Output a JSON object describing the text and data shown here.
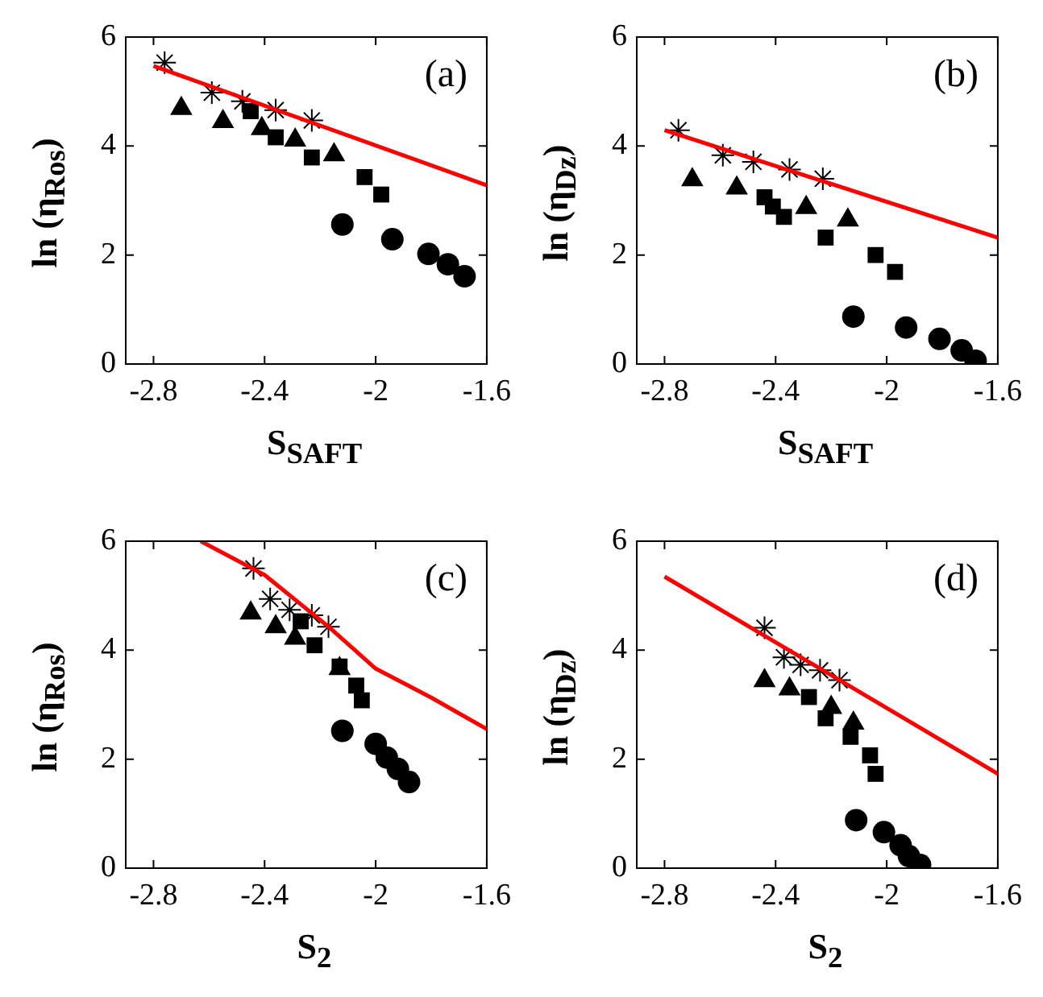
{
  "chart_data": [
    {
      "type": "scatter",
      "xlabel": "S$_{SAFT}$",
      "ylabel": "ln (η$_{Ros}$)",
      "annotations": [
        "(a)"
      ],
      "xlim": [
        -2.9,
        -1.6
      ],
      "xticks": [
        -2.8,
        -2.4,
        -2.0,
        -1.6
      ],
      "ylim": [
        0,
        6
      ],
      "yticks": [
        0,
        2,
        4,
        6
      ],
      "grid": false,
      "legend": false,
      "series": [
        {
          "type": "line",
          "marker": "none",
          "color": "#ff0000",
          "x": [
            -2.8,
            -1.6
          ],
          "values": [
            5.47,
            3.28
          ]
        },
        {
          "marker": "cross",
          "color": "#000000",
          "x": [
            -2.76,
            -2.59,
            -2.48,
            -2.36,
            -2.23
          ],
          "values": [
            5.53,
            4.98,
            4.82,
            4.66,
            4.47
          ]
        },
        {
          "marker": "triangle",
          "color": "#000000",
          "x": [
            -2.7,
            -2.55,
            -2.41,
            -2.29,
            -2.15
          ],
          "values": [
            4.69,
            4.45,
            4.32,
            4.11,
            3.84
          ]
        },
        {
          "marker": "square",
          "color": "#000000",
          "x": [
            -2.45,
            -2.36,
            -2.23,
            -2.04,
            -1.98
          ],
          "values": [
            4.64,
            4.16,
            3.79,
            3.43,
            3.11
          ]
        },
        {
          "marker": "circle",
          "color": "#000000",
          "x": [
            -2.12,
            -1.94,
            -1.81,
            -1.74,
            -1.68
          ],
          "values": [
            2.56,
            2.29,
            2.02,
            1.83,
            1.61
          ]
        }
      ]
    },
    {
      "type": "scatter",
      "xlabel": "S$_{SAFT}$",
      "ylabel": "ln (η$_{Dz}$)",
      "annotations": [
        "(b)"
      ],
      "xlim": [
        -2.9,
        -1.6
      ],
      "xticks": [
        -2.8,
        -2.4,
        -2.0,
        -1.6
      ],
      "ylim": [
        0,
        6
      ],
      "yticks": [
        0,
        2,
        4,
        6
      ],
      "grid": false,
      "legend": false,
      "series": [
        {
          "type": "line",
          "marker": "none",
          "color": "#ff0000",
          "x": [
            -2.8,
            -1.6
          ],
          "values": [
            4.29,
            2.32
          ]
        },
        {
          "marker": "cross",
          "color": "#000000",
          "x": [
            -2.75,
            -2.59,
            -2.48,
            -2.35,
            -2.23
          ],
          "values": [
            4.29,
            3.83,
            3.71,
            3.57,
            3.4
          ]
        },
        {
          "marker": "triangle",
          "color": "#000000",
          "x": [
            -2.7,
            -2.54,
            -2.29,
            -2.14
          ],
          "values": [
            3.38,
            3.23,
            2.87,
            2.64
          ]
        },
        {
          "marker": "square",
          "color": "#000000",
          "x": [
            -2.44,
            -2.41,
            -2.37,
            -2.22,
            -2.04,
            -1.97
          ],
          "values": [
            3.06,
            2.89,
            2.7,
            2.32,
            2.0,
            1.69
          ]
        },
        {
          "marker": "circle",
          "color": "#000000",
          "x": [
            -2.12,
            -1.93,
            -1.81,
            -1.73,
            -1.68
          ],
          "values": [
            0.87,
            0.67,
            0.46,
            0.25,
            0.06
          ]
        }
      ]
    },
    {
      "type": "scatter",
      "xlabel": "S$_{2}$",
      "ylabel": "ln (η$_{Ros}$)",
      "annotations": [
        "(c)"
      ],
      "xlim": [
        -2.9,
        -1.6
      ],
      "xticks": [
        -2.8,
        -2.4,
        -2.0,
        -1.6
      ],
      "ylim": [
        0,
        6
      ],
      "yticks": [
        0,
        2,
        4,
        6
      ],
      "grid": false,
      "legend": false,
      "series": [
        {
          "type": "line",
          "marker": "none",
          "color": "#ff0000",
          "x": [
            -2.63,
            -2.4,
            -2.17,
            -2.0,
            -1.8,
            -1.6
          ],
          "values": [
            6.0,
            5.38,
            4.43,
            3.66,
            3.13,
            2.55
          ]
        },
        {
          "marker": "cross",
          "color": "#000000",
          "x": [
            -2.44,
            -2.38,
            -2.31,
            -2.23,
            -2.17
          ],
          "values": [
            5.5,
            4.94,
            4.74,
            4.64,
            4.43
          ]
        },
        {
          "marker": "triangle",
          "color": "#000000",
          "x": [
            -2.45,
            -2.36,
            -2.29,
            -2.13
          ],
          "values": [
            4.68,
            4.43,
            4.22,
            3.66
          ]
        },
        {
          "marker": "square",
          "color": "#000000",
          "x": [
            -2.27,
            -2.22,
            -2.13,
            -2.07,
            -2.05
          ],
          "values": [
            4.53,
            4.09,
            3.7,
            3.35,
            3.08
          ]
        },
        {
          "marker": "circle",
          "color": "#000000",
          "x": [
            -2.12,
            -2.0,
            -1.96,
            -1.92,
            -1.88
          ],
          "values": [
            2.52,
            2.28,
            2.03,
            1.82,
            1.58
          ]
        }
      ]
    },
    {
      "type": "scatter",
      "xlabel": "S$_{2}$",
      "ylabel": "ln (η$_{Dz}$)",
      "annotations": [
        "(d)"
      ],
      "xlim": [
        -2.9,
        -1.6
      ],
      "xticks": [
        -2.8,
        -2.4,
        -2.0,
        -1.6
      ],
      "ylim": [
        0,
        6
      ],
      "yticks": [
        0,
        2,
        4,
        6
      ],
      "grid": false,
      "legend": false,
      "series": [
        {
          "type": "line",
          "marker": "none",
          "color": "#ff0000",
          "x": [
            -2.8,
            -1.6
          ],
          "values": [
            5.35,
            1.73
          ]
        },
        {
          "marker": "cross",
          "color": "#000000",
          "x": [
            -2.44,
            -2.37,
            -2.31,
            -2.24,
            -2.17
          ],
          "values": [
            4.41,
            3.87,
            3.73,
            3.63,
            3.45
          ]
        },
        {
          "marker": "triangle",
          "color": "#000000",
          "x": [
            -2.44,
            -2.35,
            -2.2,
            -2.12
          ],
          "values": [
            3.44,
            3.29,
            2.95,
            2.66
          ]
        },
        {
          "marker": "square",
          "color": "#000000",
          "x": [
            -2.28,
            -2.22,
            -2.13,
            -2.06,
            -2.04
          ],
          "values": [
            3.14,
            2.75,
            2.41,
            2.07,
            1.73
          ]
        },
        {
          "marker": "circle",
          "color": "#000000",
          "x": [
            -2.11,
            -2.01,
            -1.95,
            -1.92,
            -1.88
          ],
          "values": [
            0.88,
            0.66,
            0.42,
            0.22,
            0.06
          ]
        }
      ]
    }
  ]
}
